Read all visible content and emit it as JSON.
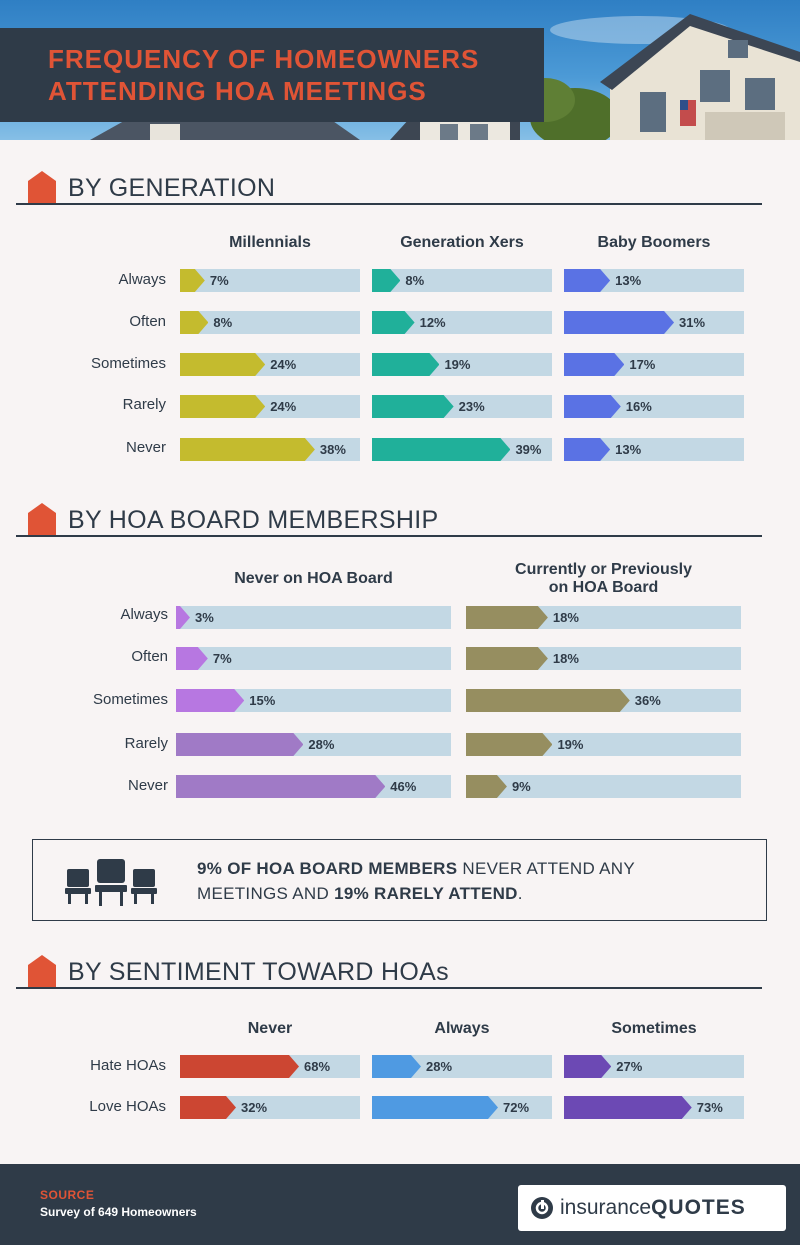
{
  "title": {
    "line1": "FREQUENCY OF HOMEOWNERS",
    "line2": "ATTENDING HOA MEETINGS"
  },
  "colors": {
    "accent": "#e05436",
    "dark": "#2f3b48",
    "track": "#c3d8e4",
    "millennials": "#c4bb2e",
    "genx": "#20b09a",
    "boomers": "#5a72e4",
    "never_board": "#b777e1",
    "board": "#968e60",
    "sent_never": "#cc4632",
    "sent_always": "#4f9ae2",
    "sent_sometimes": "#6c49b4"
  },
  "icons": {
    "section": "house-icon",
    "callout": "chairs-icon",
    "logo": "insurancequotes-logo-icon"
  },
  "chart_data": [
    {
      "type": "bar",
      "title": "BY GENERATION",
      "categories": [
        "Always",
        "Often",
        "Sometimes",
        "Rarely",
        "Never"
      ],
      "series": [
        {
          "name": "Millennials",
          "color": "#c4bb2e",
          "values": [
            7,
            8,
            24,
            24,
            38
          ]
        },
        {
          "name": "Generation Xers",
          "color": "#20b09a",
          "values": [
            8,
            12,
            19,
            23,
            39
          ]
        },
        {
          "name": "Baby Boomers",
          "color": "#5a72e4",
          "values": [
            13,
            31,
            17,
            16,
            13
          ]
        }
      ],
      "value_suffix": "%"
    },
    {
      "type": "bar",
      "title": "BY HOA BOARD MEMBERSHIP",
      "categories": [
        "Always",
        "Often",
        "Sometimes",
        "Rarely",
        "Never"
      ],
      "series": [
        {
          "name": "Never on HOA Board",
          "colors": [
            "#b777e1",
            "#b777e1",
            "#b777e1",
            "#a07ac6",
            "#a07ac6"
          ],
          "values": [
            3,
            7,
            15,
            28,
            46
          ]
        },
        {
          "name": "Currently or Previously on HOA Board",
          "name_line1": "Currently or Previously",
          "name_line2": "on HOA Board",
          "color": "#968e60",
          "values": [
            18,
            18,
            36,
            19,
            9
          ]
        }
      ],
      "value_suffix": "%"
    },
    {
      "type": "bar",
      "title": "BY SENTIMENT TOWARD HOAs",
      "categories": [
        "Hate HOAs",
        "Love HOAs"
      ],
      "series": [
        {
          "name": "Never",
          "color": "#cc4632",
          "values": [
            68,
            32
          ]
        },
        {
          "name": "Always",
          "color": "#4f9ae2",
          "values": [
            28,
            72
          ]
        },
        {
          "name": "Sometimes",
          "color": "#6c49b4",
          "values": [
            27,
            73
          ]
        }
      ],
      "value_suffix": "%"
    }
  ],
  "callout": {
    "line1_bold": "9% OF HOA BOARD MEMBERS",
    "line1_rest": " NEVER ATTEND ANY",
    "line2_start": "MEETINGS AND ",
    "line2_bold": "19% RARELY ATTEND",
    "line2_end": "."
  },
  "footer": {
    "source_label": "SOURCE",
    "source_text": "Survey of 649 Homeowners",
    "logo_word1": "insurance",
    "logo_word2": "QUOTES"
  }
}
